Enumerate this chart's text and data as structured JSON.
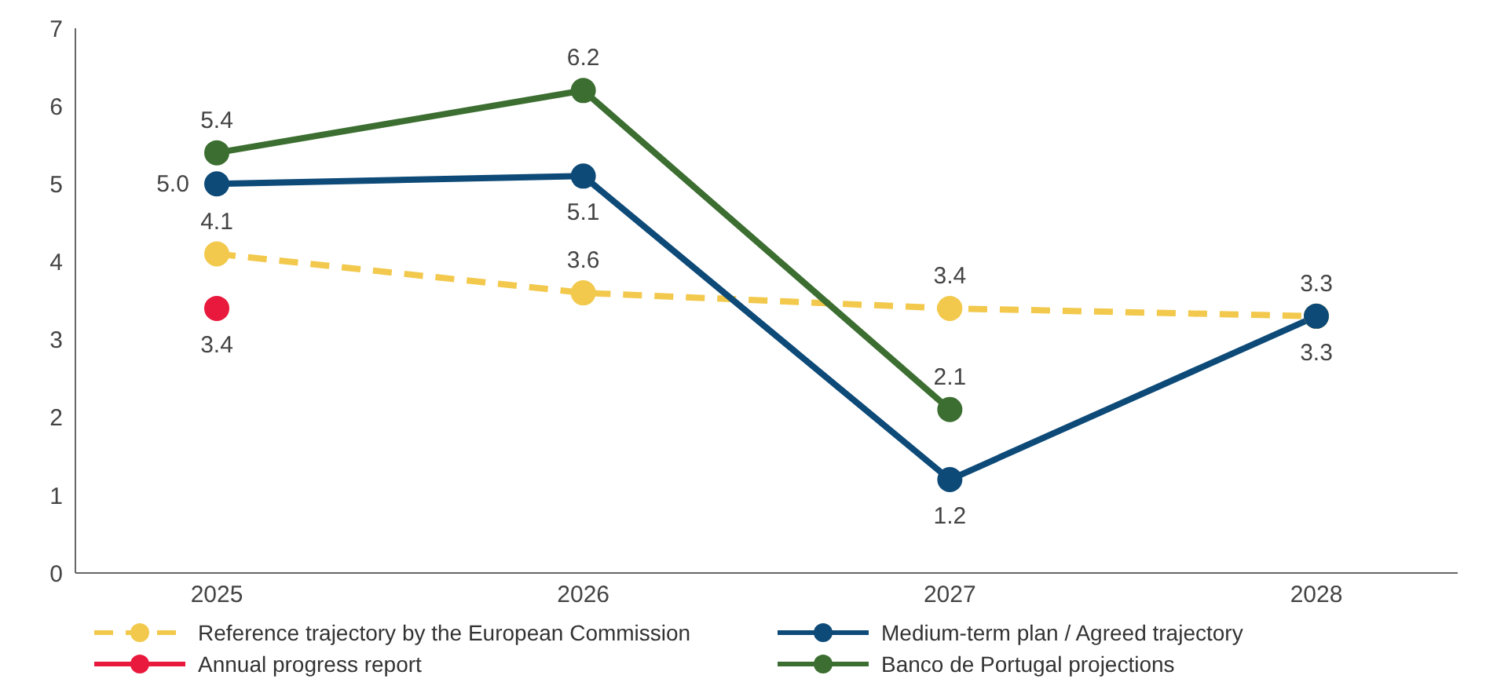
{
  "chart_data": {
    "type": "line",
    "categories": [
      "2025",
      "2026",
      "2027",
      "2028"
    ],
    "series": [
      {
        "name": "Reference trajectory by the European Commission",
        "color": "#f2c94c",
        "line_style": "dashed",
        "values": [
          4.1,
          3.6,
          3.4,
          3.3
        ],
        "value_labels": [
          "4.1",
          "3.6",
          "3.4",
          "3.3"
        ]
      },
      {
        "name": "Medium-term plan / Agreed trajectory",
        "color": "#0d4a78",
        "line_style": "solid",
        "values": [
          5.0,
          5.1,
          1.2,
          3.3
        ],
        "value_labels": [
          "5.0",
          "5.1",
          "1.2",
          "3.3"
        ]
      },
      {
        "name": "Annual progress report",
        "color": "#e8193c",
        "line_style": "solid",
        "values": [
          3.4,
          null,
          null,
          null
        ],
        "value_labels": [
          "3.4",
          null,
          null,
          null
        ]
      },
      {
        "name": "Banco de Portugal projections",
        "color": "#3b6e30",
        "line_style": "solid",
        "values": [
          5.4,
          6.2,
          2.1,
          null
        ],
        "value_labels": [
          "5.4",
          "6.2",
          "2.1",
          null
        ]
      }
    ],
    "ylim": [
      0,
      7
    ],
    "yticks": [
      0,
      1,
      2,
      3,
      4,
      5,
      6,
      7
    ],
    "legend": "bottom",
    "marker": "circle"
  }
}
